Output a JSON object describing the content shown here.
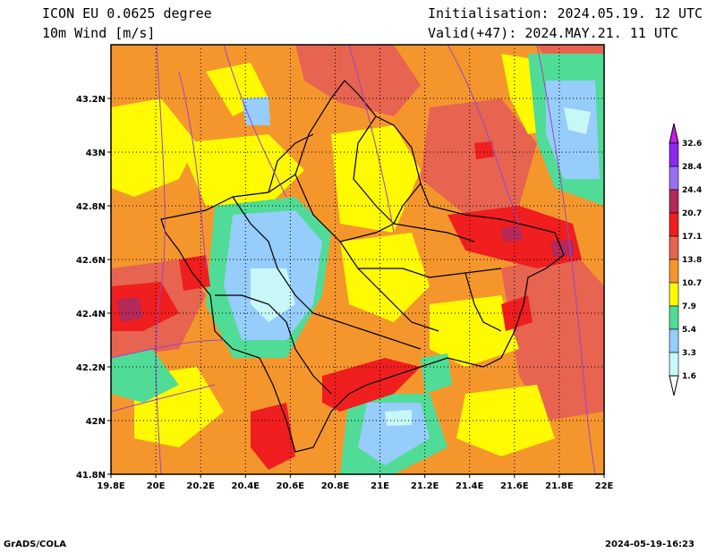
{
  "header": {
    "model": "ICON EU 0.0625 degree",
    "field": "10m Wind [m/s]",
    "init": "Initialisation: 2024.05.19. 12 UTC",
    "valid": "Valid(+47): 2024.MAY.21. 11 UTC"
  },
  "map": {
    "lon_ticks": [
      "19.8E",
      "20E",
      "20.2E",
      "20.4E",
      "20.6E",
      "20.8E",
      "21E",
      "21.2E",
      "21.4E",
      "21.6E",
      "21.8E",
      "22E"
    ],
    "lat_ticks": [
      "41.8N",
      "42N",
      "42.2N",
      "42.4N",
      "42.6N",
      "42.8N",
      "43N",
      "43.2N"
    ],
    "lon_range": [
      19.8,
      22.0
    ],
    "lat_range": [
      41.8,
      43.4
    ],
    "palette": {
      "bg": "#f5962d",
      "c1": "#c7f7f7",
      "c2": "#96cdfa",
      "c3": "#50dc96",
      "c4": "#fffa00",
      "c5": "#f5962d",
      "c6": "#e66450",
      "c7": "#f01e1e",
      "c8": "#b4285a",
      "c9": "#9b6ef0",
      "c10": "#8c28f0"
    }
  },
  "legend": {
    "labels": [
      "32.6",
      "28.4",
      "24.4",
      "20.7",
      "17.1",
      "13.8",
      "10.7",
      "7.9",
      "5.4",
      "3.3",
      "1.6"
    ],
    "colors": [
      "#8c28f0",
      "#9b6ef0",
      "#b4285a",
      "#f01e1e",
      "#e66450",
      "#f5962d",
      "#fffa00",
      "#50dc96",
      "#96cdfa",
      "#c7f7f7"
    ],
    "top_color": "#c81ee6"
  },
  "footer": {
    "left": "GrADS/COLA",
    "right": "2024-05-19-16:23"
  }
}
